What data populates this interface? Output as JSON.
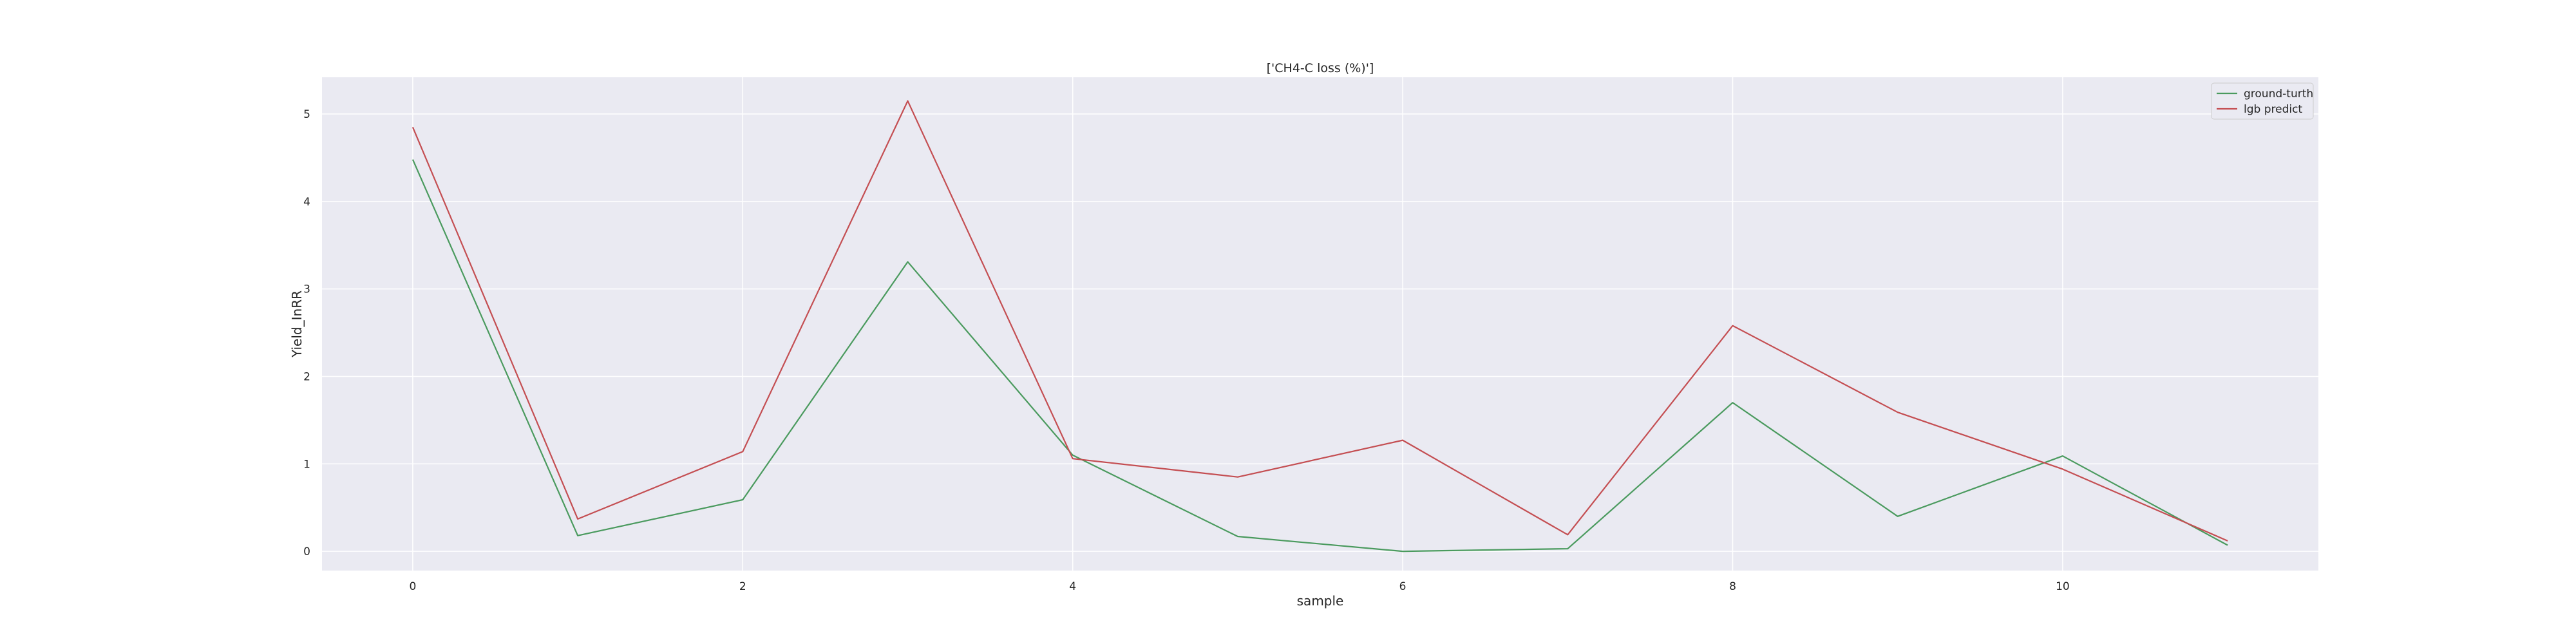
{
  "chart_data": {
    "type": "line",
    "title": "['CH4-C loss (%)']",
    "xlabel": "sample",
    "ylabel": "Yield_InRR",
    "x": [
      0,
      1,
      2,
      3,
      4,
      5,
      6,
      7,
      8,
      9,
      10,
      11
    ],
    "xlim": [
      -0.55,
      11.55
    ],
    "ylim": [
      -0.22,
      5.42
    ],
    "xticks": [
      0,
      2,
      4,
      6,
      8,
      10
    ],
    "yticks": [
      0,
      1,
      2,
      3,
      4,
      5
    ],
    "grid": true,
    "legend_position": "top-right",
    "series": [
      {
        "name": "ground-turth",
        "color": "#4a9a5e",
        "values": [
          4.48,
          0.18,
          0.59,
          3.31,
          1.1,
          0.17,
          0.0,
          0.03,
          1.7,
          0.4,
          1.09,
          0.07
        ]
      },
      {
        "name": "lgb predict",
        "color": "#c44e52",
        "values": [
          4.85,
          0.37,
          1.14,
          5.15,
          1.06,
          0.85,
          1.27,
          0.19,
          2.58,
          1.59,
          0.94,
          0.12
        ]
      }
    ]
  },
  "colors": {
    "plot_background": "#eaeaf2",
    "grid": "#ffffff"
  }
}
